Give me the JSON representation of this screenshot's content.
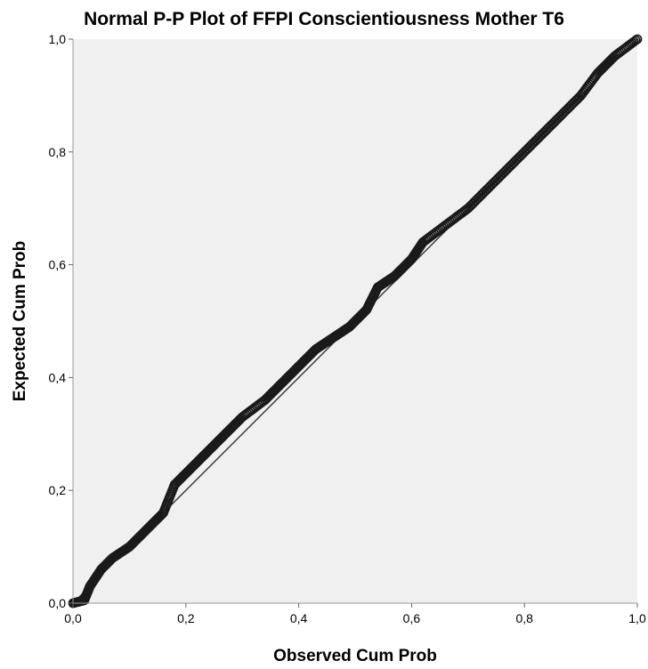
{
  "chart_data": {
    "type": "scatter",
    "title": "Normal P-P Plot of FFPI Conscientiousness Mother T6",
    "xlabel": "Observed Cum Prob",
    "ylabel": "Expected Cum Prob",
    "xlim": [
      0,
      1
    ],
    "ylim": [
      0,
      1
    ],
    "xticks": [
      "0,0",
      "0,2",
      "0,4",
      "0,6",
      "0,8",
      "1,0"
    ],
    "yticks": [
      "0,0",
      "0,2",
      "0,4",
      "0,6",
      "0,8",
      "1,0"
    ],
    "grid": false,
    "legend": "none",
    "colors": {
      "plot_background": "#f0f0f0",
      "points": "#1a1a1a",
      "reference_line": "#333333",
      "axis": "#999999"
    },
    "reference_line": {
      "x": [
        0,
        1
      ],
      "y": [
        0,
        1
      ]
    },
    "series": [
      {
        "x": [
          0.0,
          0.02,
          0.03,
          0.05,
          0.07,
          0.1,
          0.13,
          0.16,
          0.18,
          0.21,
          0.24,
          0.27,
          0.3,
          0.34,
          0.37,
          0.4,
          0.43,
          0.46,
          0.49,
          0.52,
          0.54,
          0.57,
          0.6,
          0.62,
          0.66,
          0.7,
          0.74,
          0.78,
          0.82,
          0.86,
          0.9,
          0.93,
          0.96,
          1.0
        ],
        "y": [
          0.0,
          0.005,
          0.03,
          0.06,
          0.08,
          0.1,
          0.13,
          0.16,
          0.21,
          0.24,
          0.27,
          0.3,
          0.33,
          0.36,
          0.39,
          0.42,
          0.45,
          0.47,
          0.49,
          0.52,
          0.56,
          0.58,
          0.61,
          0.64,
          0.67,
          0.7,
          0.74,
          0.78,
          0.82,
          0.86,
          0.9,
          0.94,
          0.97,
          1.0
        ]
      }
    ]
  }
}
